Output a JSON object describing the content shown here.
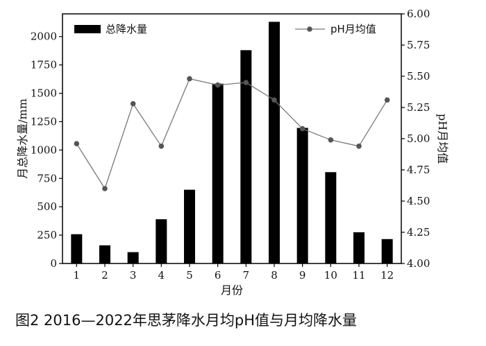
{
  "caption": "图2 2016—2022年思茅降水月均pH值与月均降水量",
  "chart_data": {
    "type": "bar+line",
    "categories": [
      "1",
      "2",
      "3",
      "4",
      "5",
      "6",
      "7",
      "8",
      "9",
      "10",
      "11",
      "12"
    ],
    "series": [
      {
        "name": "总降水量",
        "type": "bar",
        "axis": "left",
        "values": [
          258,
          160,
          100,
          390,
          650,
          1585,
          1880,
          2130,
          1195,
          805,
          275,
          215
        ]
      },
      {
        "name": "pH月均值",
        "type": "line",
        "axis": "right",
        "values": [
          4.96,
          4.6,
          5.28,
          4.94,
          5.48,
          5.43,
          5.45,
          5.31,
          5.08,
          4.99,
          4.94,
          5.31
        ]
      }
    ],
    "xlabel": "月份",
    "ylabel": "月总降水量/mm",
    "y2label": "pH月均值",
    "ylim": [
      0,
      2200
    ],
    "y2lim": [
      4.0,
      6.0
    ],
    "yticks": [
      "0",
      "250",
      "500",
      "750",
      "1000",
      "1250",
      "1500",
      "1750",
      "2000"
    ],
    "y2ticks": [
      "4.00",
      "4.25",
      "4.50",
      "4.75",
      "5.00",
      "5.25",
      "5.50",
      "5.75",
      "6.00"
    ],
    "legend": {
      "bar_placement": "top-left",
      "line_placement": "top-right"
    },
    "colors": {
      "bar": "#000000",
      "line": "#777777",
      "marker": "#555555"
    },
    "grid": false
  }
}
